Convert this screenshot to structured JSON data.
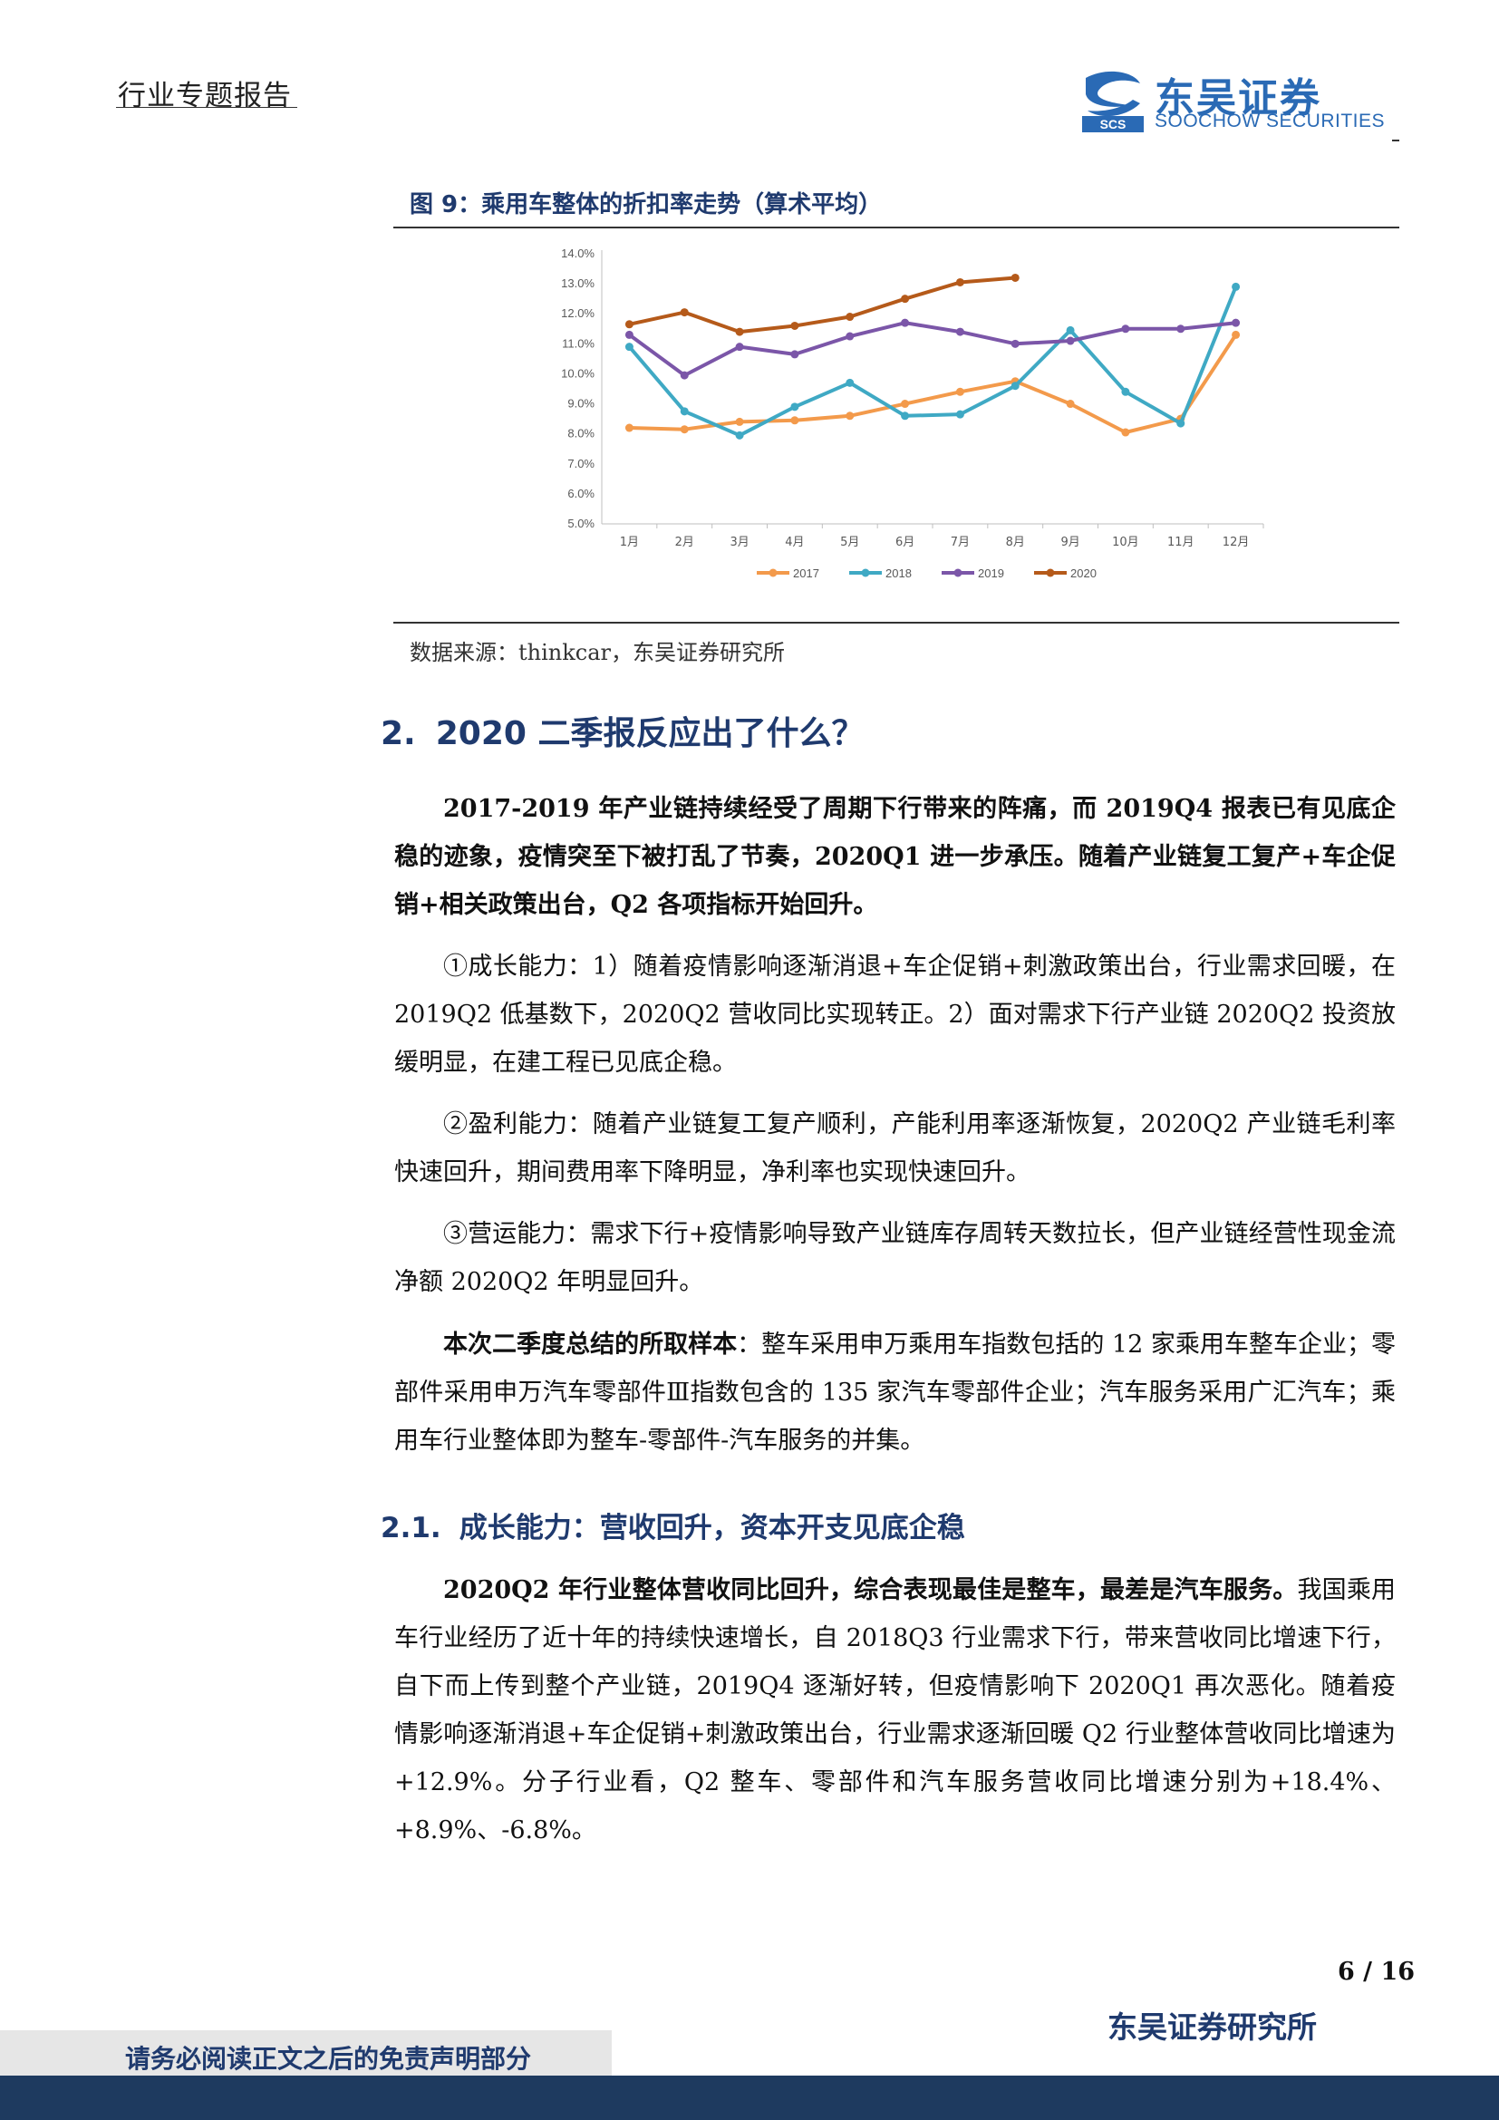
{
  "header": {
    "label": "行业专题报告",
    "brand_cn": "东吴证券",
    "brand_en": "SOOCHOW SECURITIES",
    "logo_abbr": "SCS",
    "brand_color": "#2a6ab5"
  },
  "figure": {
    "title": "图 9：乘用车整体的折扣率走势（算术平均）",
    "source": "数据来源：thinkcar，东吴证券研究所"
  },
  "chart_data": {
    "type": "line",
    "categories": [
      "1月",
      "2月",
      "3月",
      "4月",
      "5月",
      "6月",
      "7月",
      "8月",
      "9月",
      "10月",
      "11月",
      "12月"
    ],
    "y_ticks": [
      "5.0%",
      "6.0%",
      "7.0%",
      "8.0%",
      "9.0%",
      "10.0%",
      "11.0%",
      "12.0%",
      "13.0%",
      "14.0%"
    ],
    "ylim": [
      5.0,
      14.0
    ],
    "grid": false,
    "legend_position": "bottom",
    "series": [
      {
        "name": "2017",
        "color": "#f39a4b",
        "values": [
          8.2,
          8.15,
          8.4,
          8.45,
          8.6,
          9.0,
          9.4,
          9.75,
          9.0,
          8.05,
          8.5,
          11.3
        ]
      },
      {
        "name": "2018",
        "color": "#3fa9c4",
        "values": [
          10.9,
          8.75,
          7.95,
          8.9,
          9.7,
          8.6,
          8.65,
          9.6,
          11.45,
          9.4,
          8.35,
          12.9
        ]
      },
      {
        "name": "2019",
        "color": "#7b56a8",
        "values": [
          11.3,
          9.95,
          10.9,
          10.65,
          11.25,
          11.7,
          11.4,
          11.0,
          11.1,
          11.5,
          11.5,
          11.7
        ]
      },
      {
        "name": "2020",
        "color": "#b55a1a",
        "values": [
          11.65,
          12.05,
          11.4,
          11.6,
          11.9,
          12.5,
          13.05,
          13.2,
          null,
          null,
          null,
          null
        ]
      }
    ]
  },
  "section": {
    "num": "2.",
    "title": "2020 二季报反应出了什么？"
  },
  "paragraphs": {
    "p1": "2017-2019 年产业链持续经受了周期下行带来的阵痛，而 2019Q4 报表已有见底企稳的迹象，疫情突至下被打乱了节奏，2020Q1 进一步承压。随着产业链复工复产+车企促销+相关政策出台，Q2 各项指标开始回升。",
    "p2": "①成长能力：1）随着疫情影响逐渐消退+车企促销+刺激政策出台，行业需求回暖，在 2019Q2 低基数下，2020Q2 营收同比实现转正。2）面对需求下行产业链 2020Q2 投资放缓明显，在建工程已见底企稳。",
    "p3": "②盈利能力：随着产业链复工复产顺利，产能利用率逐渐恢复，2020Q2 产业链毛利率快速回升，期间费用率下降明显，净利率也实现快速回升。",
    "p4": "③营运能力：需求下行+疫情影响导致产业链库存周转天数拉长，但产业链经营性现金流净额 2020Q2 年明显回升。",
    "p5_lead": "本次二季度总结的所取样本",
    "p5_body": "：整车采用申万乘用车指数包括的 12 家乘用车整车企业；零部件采用申万汽车零部件Ⅲ指数包含的 135 家汽车零部件企业；汽车服务采用广汇汽车；乘用车行业整体即为整车-零部件-汽车服务的并集。",
    "p6_lead": "2020Q2 年行业整体营收同比回升，综合表现最佳是整车，最差是汽车服务。",
    "p6_body": "我国乘用车行业经历了近十年的持续快速增长，自 2018Q3 行业需求下行，带来营收同比增速下行，自下而上传到整个产业链，2019Q4 逐渐好转，但疫情影响下 2020Q1 再次恶化。随着疫情影响逐渐消退+车企促销+刺激政策出台，行业需求逐渐回暖 Q2 行业整体营收同比增速为+12.9%。分子行业看，Q2 整车、零部件和汽车服务营收同比增速分别为+18.4%、+8.9%、-6.8%。"
  },
  "subsection": {
    "num": "2.1.",
    "title": "成长能力：营收回升，资本开支见底企稳"
  },
  "footer": {
    "page": "6 / 16",
    "institute": "东吴证券研究所",
    "disclaimer": "请务必阅读正文之后的免责声明部分"
  }
}
